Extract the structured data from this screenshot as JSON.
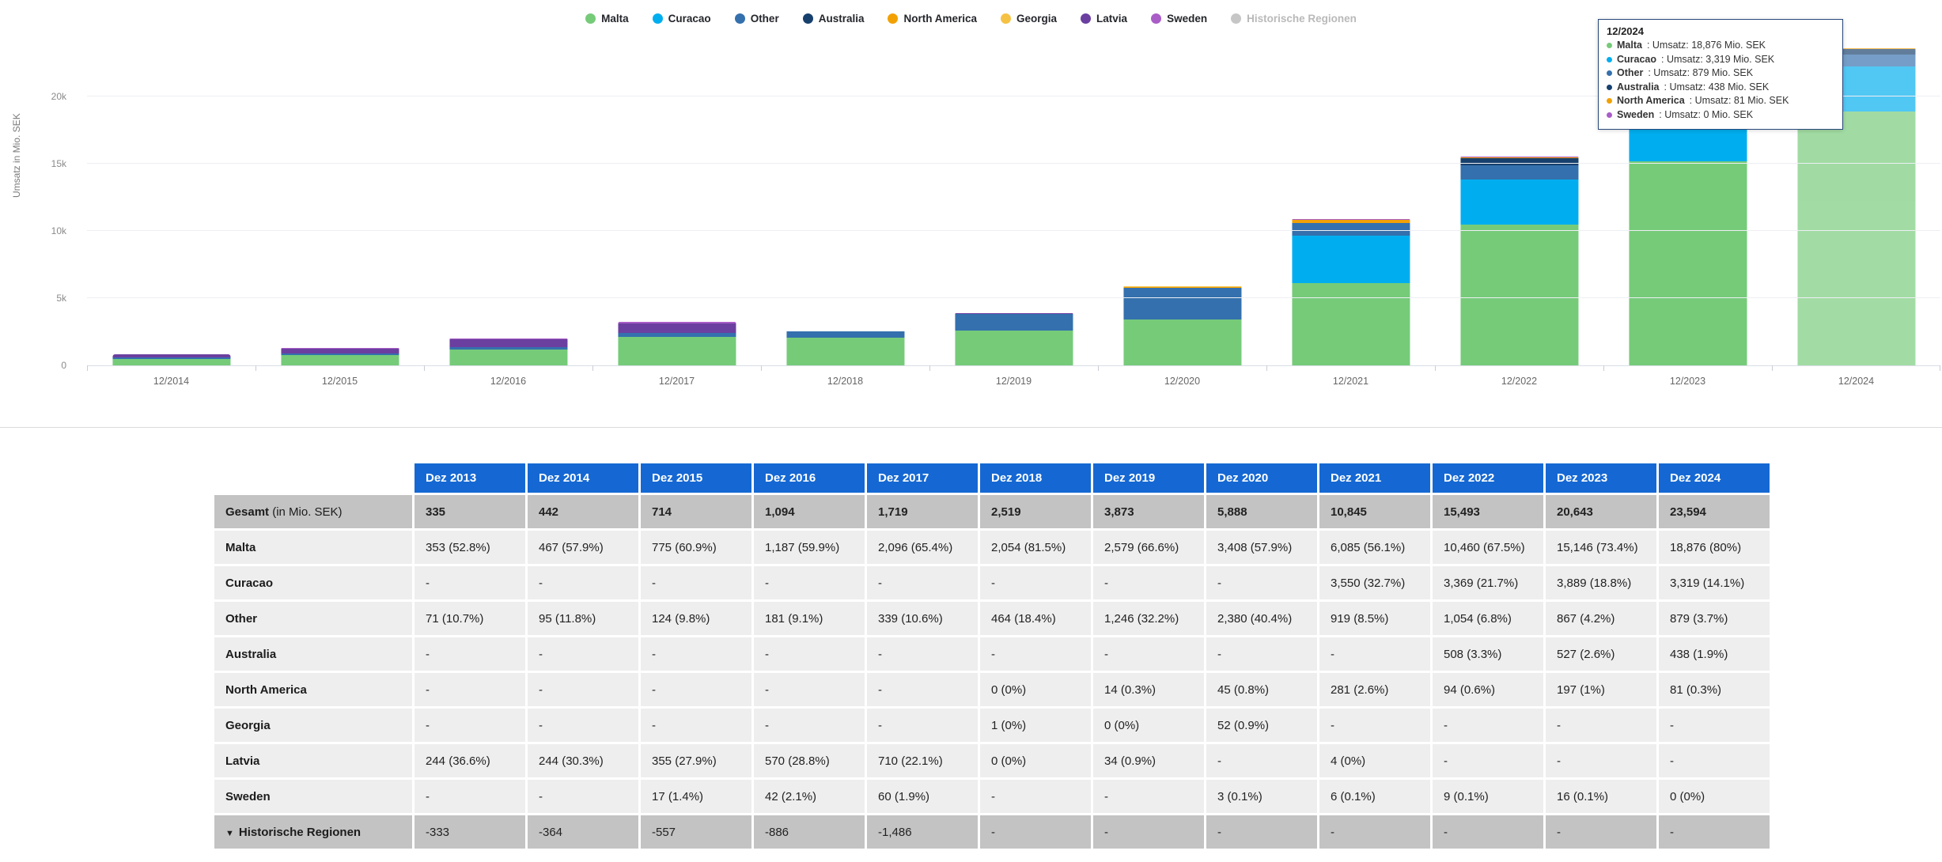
{
  "colors": {
    "malta": "#76cb79",
    "curacao": "#00aeef",
    "other": "#3470ad",
    "australia": "#17406d",
    "north_america": "#f2a105",
    "georgia": "#f6c244",
    "latvia": "#6b3fa0",
    "sweden": "#a95dc7",
    "historic": "#c6c6c6",
    "header_blue": "#1568d3",
    "tooltip_border": "#28497c"
  },
  "chart": {
    "y_axis_title": "Umsatz in Mio. SEK",
    "y_gridlines": [
      {
        "label": "0",
        "value": 0
      },
      {
        "label": "5k",
        "value": 5000
      },
      {
        "label": "10k",
        "value": 10000
      },
      {
        "label": "15k",
        "value": 15000
      },
      {
        "label": "20k",
        "value": 20000
      }
    ]
  },
  "chart_data": {
    "type": "bar",
    "stacked": true,
    "title": "",
    "xlabel": "",
    "ylabel": "Umsatz in Mio. SEK",
    "ylim": [
      0,
      23800
    ],
    "y_max": 23800,
    "grid": true,
    "legend_position": "top",
    "highlighted_category": "12/2024",
    "categories": [
      "12/2014",
      "12/2015",
      "12/2016",
      "12/2017",
      "12/2018",
      "12/2019",
      "12/2020",
      "12/2021",
      "12/2022",
      "12/2023",
      "12/2024"
    ],
    "series": [
      {
        "name": "Malta",
        "color_key": "malta",
        "values": [
          467,
          775,
          1187,
          2096,
          2054,
          2579,
          3408,
          6085,
          10460,
          15146,
          18876
        ]
      },
      {
        "name": "Curacao",
        "color_key": "curacao",
        "values": [
          0,
          0,
          0,
          0,
          0,
          0,
          0,
          3550,
          3369,
          3889,
          3319
        ]
      },
      {
        "name": "Other",
        "color_key": "other",
        "values": [
          95,
          124,
          181,
          339,
          464,
          1246,
          2380,
          919,
          1054,
          867,
          879
        ]
      },
      {
        "name": "Australia",
        "color_key": "australia",
        "values": [
          0,
          0,
          0,
          0,
          0,
          0,
          0,
          0,
          508,
          527,
          438
        ]
      },
      {
        "name": "North America",
        "color_key": "north_america",
        "values": [
          0,
          0,
          0,
          0,
          0,
          14,
          45,
          281,
          94,
          197,
          81
        ]
      },
      {
        "name": "Georgia",
        "color_key": "georgia",
        "values": [
          0,
          0,
          0,
          0,
          1,
          0,
          52,
          0,
          0,
          0,
          0
        ]
      },
      {
        "name": "Latvia",
        "color_key": "latvia",
        "values": [
          244,
          355,
          570,
          710,
          0,
          34,
          0,
          4,
          0,
          0,
          0
        ]
      },
      {
        "name": "Sweden",
        "color_key": "sweden",
        "values": [
          0,
          17,
          42,
          60,
          0,
          0,
          3,
          6,
          9,
          16,
          0
        ]
      }
    ]
  },
  "legend": {
    "items": [
      {
        "label": "Malta",
        "color_key": "malta",
        "disabled": false
      },
      {
        "label": "Curacao",
        "color_key": "curacao",
        "disabled": false
      },
      {
        "label": "Other",
        "color_key": "other",
        "disabled": false
      },
      {
        "label": "Australia",
        "color_key": "australia",
        "disabled": false
      },
      {
        "label": "North America",
        "color_key": "north_america",
        "disabled": false
      },
      {
        "label": "Georgia",
        "color_key": "georgia",
        "disabled": false
      },
      {
        "label": "Latvia",
        "color_key": "latvia",
        "disabled": false
      },
      {
        "label": "Sweden",
        "color_key": "sweden",
        "disabled": false
      },
      {
        "label": "Historische Regionen",
        "color_key": "historic",
        "disabled": true
      }
    ]
  },
  "tooltip": {
    "title": "12/2024",
    "rows": [
      {
        "name": "Malta",
        "color_key": "malta",
        "text": "Umsatz: 18,876 Mio. SEK"
      },
      {
        "name": "Curacao",
        "color_key": "curacao",
        "text": "Umsatz: 3,319 Mio. SEK"
      },
      {
        "name": "Other",
        "color_key": "other",
        "text": "Umsatz: 879 Mio. SEK"
      },
      {
        "name": "Australia",
        "color_key": "australia",
        "text": "Umsatz: 438 Mio. SEK"
      },
      {
        "name": "North America",
        "color_key": "north_america",
        "text": "Umsatz: 81 Mio. SEK"
      },
      {
        "name": "Sweden",
        "color_key": "sweden",
        "text": "Umsatz: 0 Mio. SEK"
      }
    ]
  },
  "table": {
    "columns": [
      "Dez 2013",
      "Dez 2014",
      "Dez 2015",
      "Dez 2016",
      "Dez 2017",
      "Dez 2018",
      "Dez 2019",
      "Dez 2020",
      "Dez 2021",
      "Dez 2022",
      "Dez 2023",
      "Dez 2024"
    ],
    "rows": [
      {
        "label": "Gesamt",
        "label_suffix": " (in Mio. SEK)",
        "style": "total",
        "expander": "",
        "values": [
          "335",
          "442",
          "714",
          "1,094",
          "1,719",
          "2,519",
          "3,873",
          "5,888",
          "10,845",
          "15,493",
          "20,643",
          "23,594"
        ]
      },
      {
        "label": "Malta",
        "label_suffix": "",
        "style": "region",
        "expander": "",
        "values": [
          "353 (52.8%)",
          "467 (57.9%)",
          "775 (60.9%)",
          "1,187 (59.9%)",
          "2,096 (65.4%)",
          "2,054 (81.5%)",
          "2,579 (66.6%)",
          "3,408 (57.9%)",
          "6,085 (56.1%)",
          "10,460 (67.5%)",
          "15,146 (73.4%)",
          "18,876 (80%)"
        ]
      },
      {
        "label": "Curacao",
        "label_suffix": "",
        "style": "region",
        "expander": "",
        "values": [
          "-",
          "-",
          "-",
          "-",
          "-",
          "-",
          "-",
          "-",
          "3,550 (32.7%)",
          "3,369 (21.7%)",
          "3,889 (18.8%)",
          "3,319 (14.1%)"
        ]
      },
      {
        "label": "Other",
        "label_suffix": "",
        "style": "region",
        "expander": "",
        "values": [
          "71 (10.7%)",
          "95 (11.8%)",
          "124 (9.8%)",
          "181 (9.1%)",
          "339 (10.6%)",
          "464 (18.4%)",
          "1,246 (32.2%)",
          "2,380 (40.4%)",
          "919 (8.5%)",
          "1,054 (6.8%)",
          "867 (4.2%)",
          "879 (3.7%)"
        ]
      },
      {
        "label": "Australia",
        "label_suffix": "",
        "style": "region",
        "expander": "",
        "values": [
          "-",
          "-",
          "-",
          "-",
          "-",
          "-",
          "-",
          "-",
          "-",
          "508 (3.3%)",
          "527 (2.6%)",
          "438 (1.9%)"
        ]
      },
      {
        "label": "North America",
        "label_suffix": "",
        "style": "region",
        "expander": "",
        "values": [
          "-",
          "-",
          "-",
          "-",
          "-",
          "0 (0%)",
          "14 (0.3%)",
          "45 (0.8%)",
          "281 (2.6%)",
          "94 (0.6%)",
          "197 (1%)",
          "81 (0.3%)"
        ]
      },
      {
        "label": "Georgia",
        "label_suffix": "",
        "style": "region",
        "expander": "",
        "values": [
          "-",
          "-",
          "-",
          "-",
          "-",
          "1 (0%)",
          "0 (0%)",
          "52 (0.9%)",
          "-",
          "-",
          "-",
          "-"
        ]
      },
      {
        "label": "Latvia",
        "label_suffix": "",
        "style": "region",
        "expander": "",
        "values": [
          "244 (36.6%)",
          "244 (30.3%)",
          "355 (27.9%)",
          "570 (28.8%)",
          "710 (22.1%)",
          "0 (0%)",
          "34 (0.9%)",
          "-",
          "4 (0%)",
          "-",
          "-",
          "-"
        ]
      },
      {
        "label": "Sweden",
        "label_suffix": "",
        "style": "region",
        "expander": "",
        "values": [
          "-",
          "-",
          "17 (1.4%)",
          "42 (2.1%)",
          "60 (1.9%)",
          "-",
          "-",
          "3 (0.1%)",
          "6 (0.1%)",
          "9 (0.1%)",
          "16 (0.1%)",
          "0 (0%)"
        ]
      },
      {
        "label": "Historische Regionen",
        "label_suffix": "",
        "style": "historic",
        "expander": "▼",
        "values": [
          "-333",
          "-364",
          "-557",
          "-886",
          "-1,486",
          "-",
          "-",
          "-",
          "-",
          "-",
          "-",
          "-"
        ]
      }
    ]
  }
}
